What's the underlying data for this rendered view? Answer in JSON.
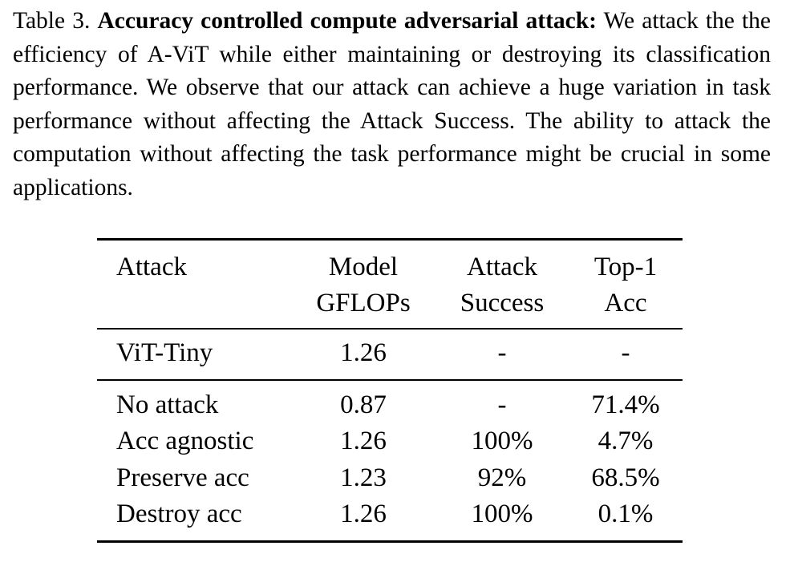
{
  "caption": {
    "label": "Table 3.",
    "heading": "Accuracy controlled compute adversarial attack:",
    "body": "We attack the the efficiency of A-ViT while either maintaining or destroying its classification performance. We observe that our attack can achieve a huge variation in task performance without affecting the Attack Success. The ability to attack the computation without affecting the task performance might be crucial in some applications."
  },
  "table": {
    "headers": [
      [
        "Attack",
        ""
      ],
      [
        "Model",
        "GFLOPs"
      ],
      [
        "Attack",
        "Success"
      ],
      [
        "Top-1",
        "Acc"
      ]
    ],
    "baseline": [
      "ViT-Tiny",
      "1.26",
      "-",
      "-"
    ],
    "rows": [
      [
        "No attack",
        "0.87",
        "-",
        "71.4%"
      ],
      [
        "Acc agnostic",
        "1.26",
        "100%",
        "4.7%"
      ],
      [
        "Preserve acc",
        "1.23",
        "92%",
        "68.5%"
      ],
      [
        "Destroy acc",
        "1.26",
        "100%",
        "0.1%"
      ]
    ]
  }
}
